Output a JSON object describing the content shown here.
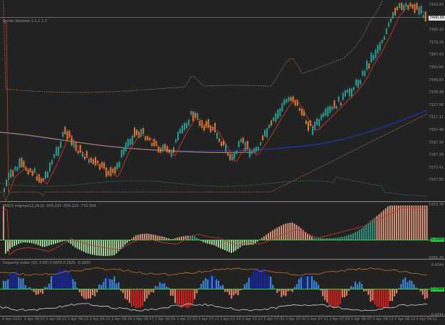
{
  "panels": {
    "main": {
      "label": "Series Volumes 1.1.1.1.1"
    },
    "macd": {
      "label": "MACD original(12,26,9) -555.223 -555.223 -772.354",
      "tag": "0.0000"
    },
    "disparity": {
      "label": "Disparity Index (10, 3.00) 0.0003 0.2625 -0.2625",
      "tag": "0.0000"
    }
  },
  "price_axis": [
    "7410.45",
    "7399.84",
    "7389.10",
    "7378.28",
    "7367.43",
    "7356.64",
    "7346.83",
    "7336.98",
    "7327.06",
    "7317.11",
    "7307.48",
    "7297.24",
    "7287.09",
    "7277.41",
    "7267.50"
  ],
  "current_price": "7400.00",
  "macd_axis": {
    "top": "1551.78",
    "bottom": "-1056.26"
  },
  "disp_axis": {
    "top": "0.4244",
    "bottom": "-0.4244"
  },
  "time_labels": [
    "6 Apr 2021",
    "3 Apr 06:07",
    "3 Apr 06:15",
    "3 Apr 06:23",
    "3 Apr 06:31",
    "3 Apr 06:39",
    "3 Apr 06:47",
    "3 Apr 06:55",
    "3 Apr 07:03",
    "3 Apr 07:11",
    "3 Apr 07:19",
    "3 Apr 07:27",
    "3 Apr 07:35",
    "3 Apr 07:42",
    "3 Apr 07:51",
    "3 Apr 07:59",
    "3 Apr 08:07",
    "3 Apr 08:15",
    "3 Apr 08:23",
    "3 Apr 08:31"
  ],
  "colors": {
    "bull": "#2aa198",
    "bear": "#d9813a",
    "signal_red": "#c0392b",
    "ma_blue": "#2233aa",
    "ma_orange": "#d08a3a",
    "band_dot": "#c27a40",
    "band_green": "#2e8b57",
    "macd_green": "#37a58b",
    "macd_salmon": "#f4a58a",
    "disp_blue": "#3a8ee6",
    "disp_darkblue": "#1426a8",
    "disp_salmon": "#f2846a",
    "disp_red": "#e0201c"
  }
}
